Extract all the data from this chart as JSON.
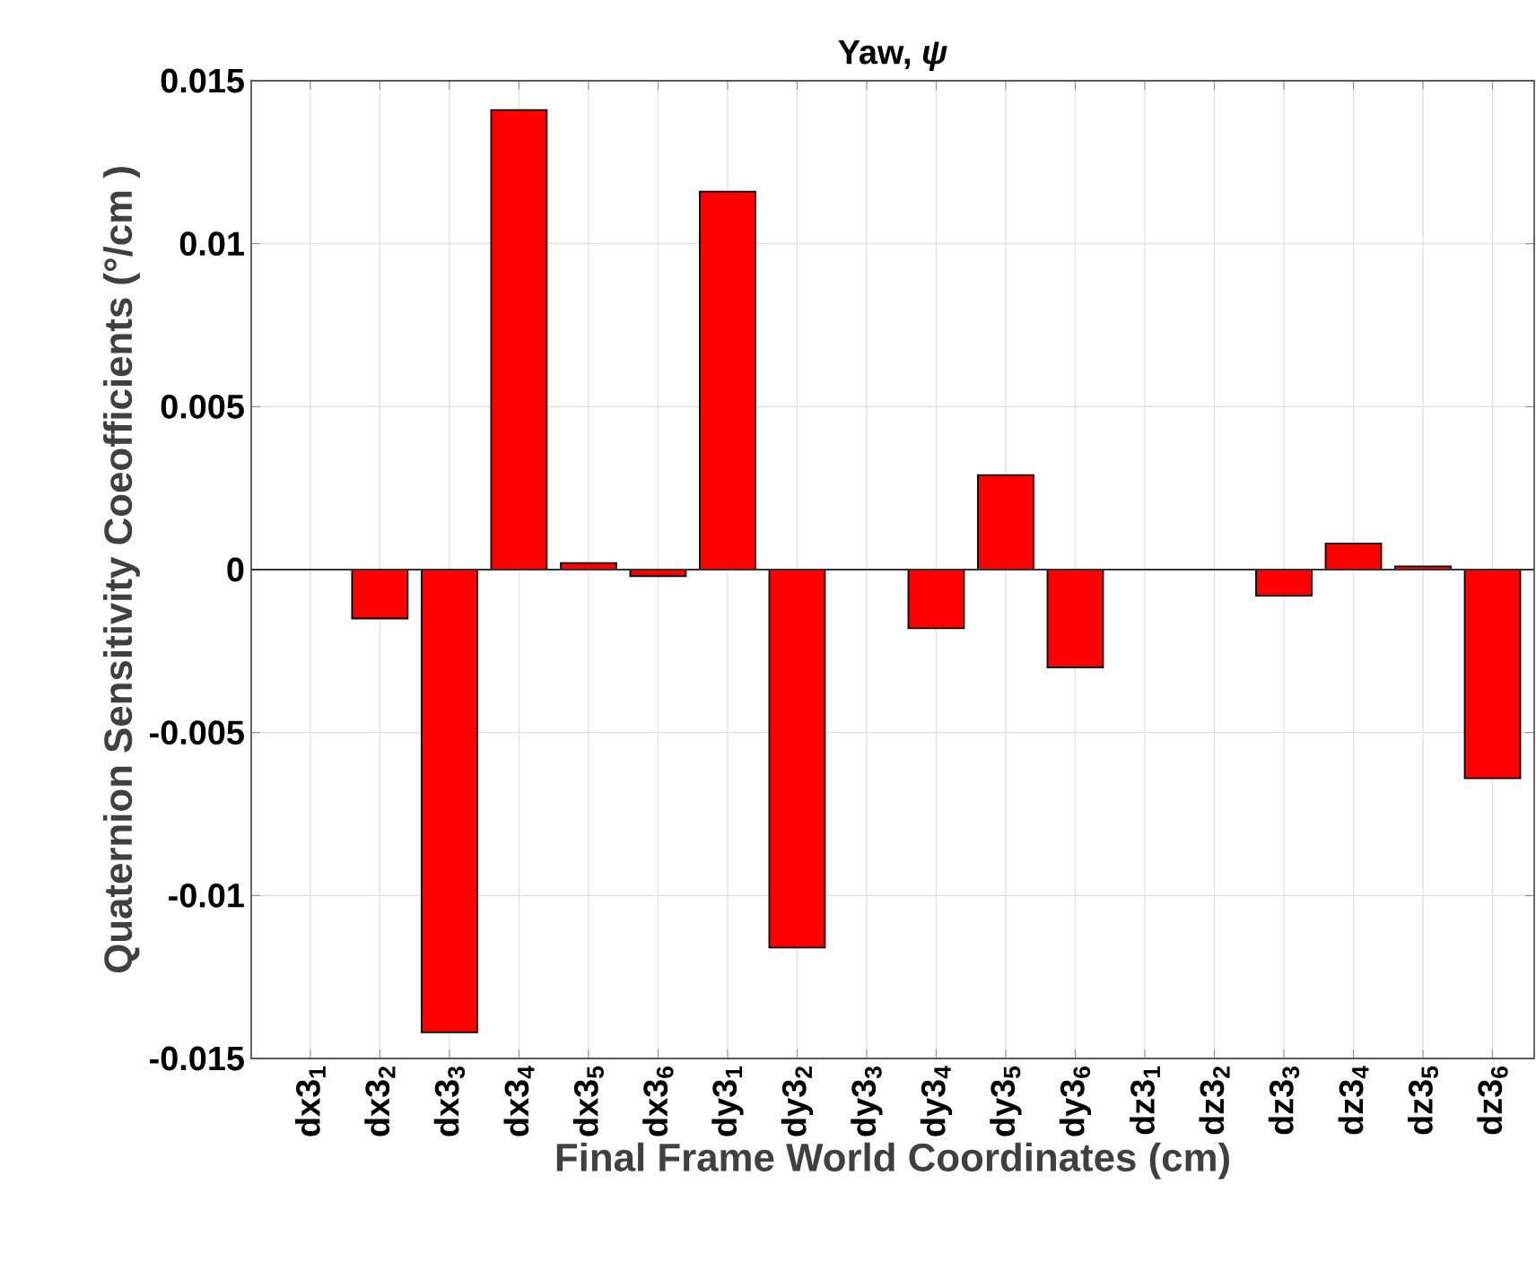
{
  "chart_data": {
    "type": "bar",
    "title": "Yaw, *ψ*",
    "xlabel": "Final Frame World Coordinates (cm)",
    "ylabel": "Quaternion Sensitivity Coeofficients (°/cm )",
    "categories": [
      "dx3$_{1}$",
      "dx3$_{2}$",
      "dx3$_{3}$",
      "dx3$_{4}$",
      "dx3$_{5}$",
      "dx3$_{6}$",
      "dy3$_{1}$",
      "dy3$_{2}$",
      "dy3$_{3}$",
      "dy3$_{4}$",
      "dy3$_{5}$",
      "dy3$_{6}$",
      "dz3$_{1}$",
      "dz3$_{2}$",
      "dz3$_{3}$",
      "dz3$_{4}$",
      "dz3$_{5}$",
      "dz3$_{6}$"
    ],
    "values": [
      0,
      -0.0015,
      -0.0142,
      0.0141,
      0.0002,
      -0.0002,
      0.0116,
      -0.0116,
      0,
      -0.0018,
      0.0029,
      -0.003,
      0,
      0,
      -0.0008,
      0.0008,
      0.0001,
      -0.0064
    ],
    "color": "#ff0000",
    "ylim": [
      -0.015,
      0.015
    ],
    "yticks": [
      -0.015,
      -0.01,
      -0.005,
      0,
      0.005,
      0.01,
      0.015
    ],
    "grid": true
  }
}
